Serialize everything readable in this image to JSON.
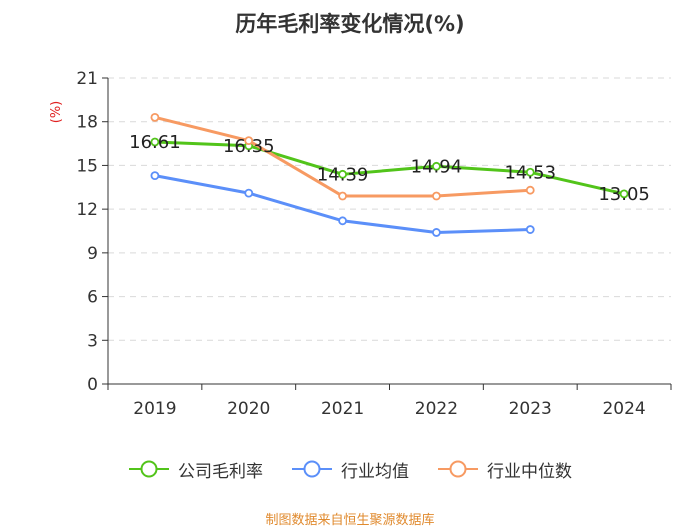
{
  "chart_data": {
    "type": "line",
    "title": "历年毛利率变化情况(%)",
    "ylabel": "(%)",
    "xlabel": "",
    "categories": [
      "2019",
      "2020",
      "2021",
      "2022",
      "2023",
      "2024"
    ],
    "ylim": [
      0,
      21
    ],
    "yticks": [
      0,
      3,
      6,
      9,
      12,
      15,
      18,
      21
    ],
    "grid": true,
    "legend_position": "bottom",
    "series": [
      {
        "name": "公司毛利率",
        "color": "#52c41a",
        "values": [
          16.61,
          16.35,
          14.39,
          14.94,
          14.53,
          13.05
        ],
        "labels": [
          "16.61",
          "16.35",
          "14.39",
          "14.94",
          "14.53",
          "13.05"
        ]
      },
      {
        "name": "行业均值",
        "color": "#5b8ff9",
        "values": [
          14.3,
          13.1,
          11.2,
          10.4,
          10.6,
          null
        ]
      },
      {
        "name": "行业中位数",
        "color": "#f79a62",
        "values": [
          18.3,
          16.7,
          12.9,
          12.9,
          13.3,
          null
        ]
      }
    ]
  },
  "source": "制图数据来自恒生聚源数据库"
}
